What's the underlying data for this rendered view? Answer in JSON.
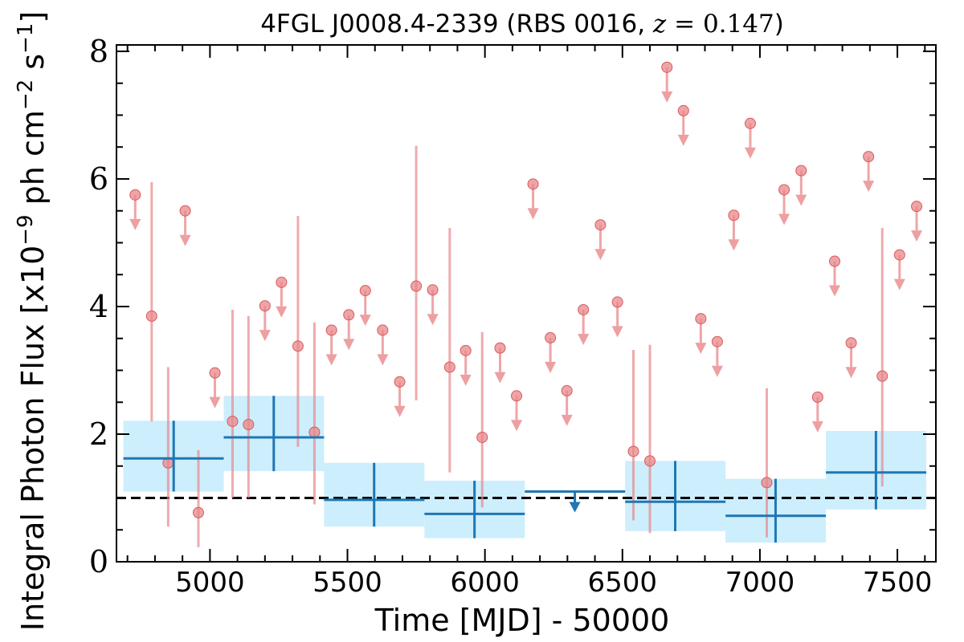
{
  "chart_data": {
    "type": "scatter",
    "title": {
      "main": "4FGL J0008.4-2339 (RBS 0016, ",
      "z_var": "z",
      "z_eq": " = ",
      "z_val": "0.147",
      "close": ")"
    },
    "xlabel": "Time [MJD] - 50000",
    "ylabel": {
      "part1": "Integral Photon Flux [x10",
      "exp1": "−9",
      "part2": " ph cm",
      "exp2": "−2",
      "part3": " s",
      "exp3": "−1",
      "part4": "]"
    },
    "xlim": [
      4660,
      7640
    ],
    "ylim": [
      0,
      8.1
    ],
    "xticks": [
      5000,
      5500,
      6000,
      6500,
      7000,
      7500
    ],
    "yticks": [
      0,
      2,
      4,
      6,
      8
    ],
    "grid": false,
    "colors": {
      "short_bins": "#e8878a",
      "long_bins": "#1f77b4",
      "long_band": "#cdeefc",
      "mean_line": "#000000"
    },
    "mean_flux": 1.0,
    "short_bins_detections": [
      {
        "t": 4788,
        "y": 3.85,
        "lo": 2.2,
        "hi": 5.95
      },
      {
        "t": 4848,
        "y": 1.55,
        "lo": 0.55,
        "hi": 3.05
      },
      {
        "t": 4958,
        "y": 0.77,
        "lo": 0.23,
        "hi": 1.75
      },
      {
        "t": 5082,
        "y": 2.2,
        "lo": 1.0,
        "hi": 3.95
      },
      {
        "t": 5140,
        "y": 2.15,
        "lo": 1.0,
        "hi": 3.85
      },
      {
        "t": 5320,
        "y": 3.38,
        "lo": 1.8,
        "hi": 5.42
      },
      {
        "t": 5380,
        "y": 2.03,
        "lo": 0.9,
        "hi": 3.75
      },
      {
        "t": 5750,
        "y": 4.32,
        "lo": 2.53,
        "hi": 6.52
      },
      {
        "t": 5872,
        "y": 3.05,
        "lo": 1.4,
        "hi": 5.23
      },
      {
        "t": 5990,
        "y": 1.95,
        "lo": 0.85,
        "hi": 3.6
      },
      {
        "t": 6540,
        "y": 1.73,
        "lo": 0.65,
        "hi": 3.32
      },
      {
        "t": 6600,
        "y": 1.58,
        "lo": 0.45,
        "hi": 3.4
      },
      {
        "t": 7025,
        "y": 1.24,
        "lo": 0.38,
        "hi": 2.72
      },
      {
        "t": 7445,
        "y": 2.91,
        "lo": 1.18,
        "hi": 5.23
      }
    ],
    "short_bins_upper_limits": [
      {
        "t": 4728,
        "y": 5.75
      },
      {
        "t": 4910,
        "y": 5.5
      },
      {
        "t": 5018,
        "y": 2.96
      },
      {
        "t": 5200,
        "y": 4.01
      },
      {
        "t": 5260,
        "y": 4.38
      },
      {
        "t": 5442,
        "y": 3.63
      },
      {
        "t": 5505,
        "y": 3.87
      },
      {
        "t": 5565,
        "y": 4.25
      },
      {
        "t": 5628,
        "y": 3.63
      },
      {
        "t": 5690,
        "y": 2.82
      },
      {
        "t": 5810,
        "y": 4.26
      },
      {
        "t": 5930,
        "y": 3.31
      },
      {
        "t": 6055,
        "y": 3.35
      },
      {
        "t": 6115,
        "y": 2.6
      },
      {
        "t": 6175,
        "y": 5.92
      },
      {
        "t": 6238,
        "y": 3.51
      },
      {
        "t": 6298,
        "y": 2.68
      },
      {
        "t": 6358,
        "y": 3.95
      },
      {
        "t": 6420,
        "y": 5.28
      },
      {
        "t": 6482,
        "y": 4.07
      },
      {
        "t": 6662,
        "y": 7.75
      },
      {
        "t": 6722,
        "y": 7.07
      },
      {
        "t": 6785,
        "y": 3.81
      },
      {
        "t": 6845,
        "y": 3.45
      },
      {
        "t": 6905,
        "y": 5.43
      },
      {
        "t": 6965,
        "y": 6.87
      },
      {
        "t": 7088,
        "y": 5.83
      },
      {
        "t": 7150,
        "y": 6.13
      },
      {
        "t": 7210,
        "y": 2.58
      },
      {
        "t": 7272,
        "y": 4.71
      },
      {
        "t": 7332,
        "y": 3.43
      },
      {
        "t": 7395,
        "y": 6.35
      },
      {
        "t": 7508,
        "y": 4.81
      },
      {
        "t": 7570,
        "y": 5.57
      }
    ],
    "long_bins_detections": [
      {
        "t0": 4685,
        "t1": 5050,
        "t": 4868,
        "y": 1.62,
        "lo": 1.1,
        "hi": 2.21
      },
      {
        "t0": 5050,
        "t1": 5415,
        "t": 5232,
        "y": 1.95,
        "lo": 1.42,
        "hi": 2.6
      },
      {
        "t0": 5415,
        "t1": 5780,
        "t": 5597,
        "y": 0.97,
        "lo": 0.55,
        "hi": 1.55
      },
      {
        "t0": 5780,
        "t1": 6145,
        "t": 5962,
        "y": 0.75,
        "lo": 0.37,
        "hi": 1.27
      },
      {
        "t0": 6510,
        "t1": 6875,
        "t": 6692,
        "y": 0.94,
        "lo": 0.48,
        "hi": 1.58
      },
      {
        "t0": 6875,
        "t1": 7240,
        "t": 7057,
        "y": 0.72,
        "lo": 0.3,
        "hi": 1.3
      },
      {
        "t0": 7240,
        "t1": 7605,
        "t": 7422,
        "y": 1.4,
        "lo": 0.82,
        "hi": 2.05
      }
    ],
    "long_bins_upper_limits": [
      {
        "t0": 6145,
        "t1": 6510,
        "t": 6327,
        "y": 1.1
      }
    ]
  }
}
